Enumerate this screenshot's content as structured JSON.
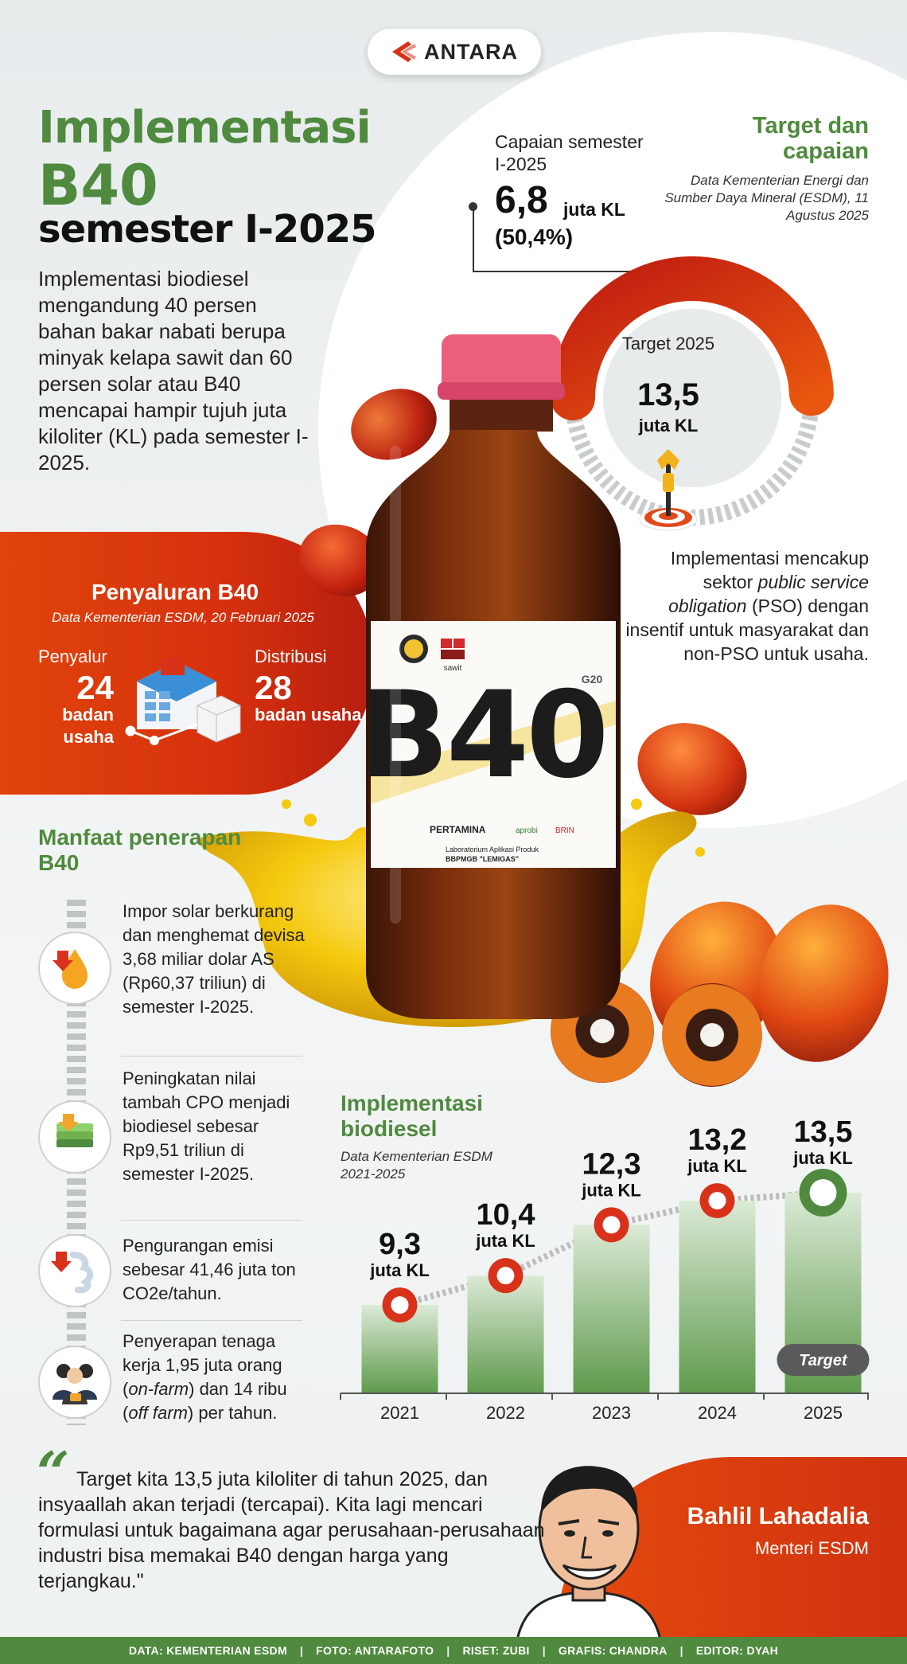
{
  "logo": {
    "text": "ANTARA"
  },
  "title": {
    "line1": "Implementasi",
    "line2": "B40",
    "line3": "semester I-2025"
  },
  "intro": "Implementasi biodiesel mengandung 40 persen bahan bakar nabati berupa minyak kelapa sawit dan 60 persen solar atau B40 mencapai hampir tujuh juta kiloliter (KL) pada semester I-2025.",
  "target_section": {
    "heading": "Target dan capaian",
    "source": "Data Kementerian Energi dan Sumber Daya Mineral (ESDM), 11 Agustus 2025",
    "achievement_label": "Capaian semester I-2025",
    "achievement_value": "6,8",
    "achievement_unit": "juta KL",
    "achievement_percent": "(50,4%)",
    "achievement_fraction": 0.504,
    "target_label": "Target 2025",
    "target_value": "13,5",
    "target_unit": "juta KL",
    "pso_text_parts": [
      "Implementasi mencakup sektor ",
      "public service obligation",
      " (PSO) dengan insentif untuk masyarakat dan non-PSO untuk usaha."
    ]
  },
  "distribution": {
    "title": "Penyaluran B40",
    "source": "Data Kementerian ESDM, 20 Februari 2025",
    "distributor_label": "Penyalur",
    "distributor_value": "24",
    "distributor_unit": "badan usaha",
    "distribution_label": "Distribusi",
    "distribution_value": "28",
    "distribution_unit": "badan usaha"
  },
  "benefits": {
    "heading": "Manfaat penerapan B40",
    "items": [
      {
        "icon": "fuel-drop-icon",
        "text": "Impor solar berkurang dan menghemat devisa 3,68 miliar dolar AS (Rp60,37 triliun) di semester I-2025."
      },
      {
        "icon": "money-stack-icon",
        "text": "Peningkatan nilai tambah CPO menjadi biodiesel sebesar Rp9,51 triliun di semester I-2025."
      },
      {
        "icon": "emission-down-icon",
        "text": "Pengurangan emisi sebesar 41,46 juta ton CO2e/tahun."
      },
      {
        "icon": "workers-icon",
        "text_parts": [
          "Penyerapan tenaga kerja 1,95 juta orang (",
          "on-farm",
          ") dan 14 ribu (",
          "off farm",
          ") per tahun."
        ]
      }
    ]
  },
  "chart_data": {
    "type": "bar",
    "title": "Implementasi biodiesel",
    "source": "Data Kementerian ESDM 2021-2025",
    "categories": [
      "2021",
      "2022",
      "2023",
      "2024",
      "2025"
    ],
    "values": [
      9.3,
      10.4,
      12.3,
      13.2,
      13.5
    ],
    "value_labels": [
      "9,3",
      "10,4",
      "12,3",
      "13,2",
      "13,5"
    ],
    "unit": "juta KL",
    "annotation": "Target",
    "annotation_category": "2025",
    "colors": {
      "bar": "#5e9a4c",
      "bar_light": "#dcead6",
      "marker": "#d8321b",
      "target_marker": "#4f8a3e"
    }
  },
  "quote": {
    "mark": "“",
    "text": "Target kita 13,5 juta kiloliter di tahun 2025, dan insyaallah akan terjadi (tercapai). Kita lagi mencari formulasi untuk bagaimana agar perusahaan-perusahaan industri bisa memakai B40 dengan harga yang terjangkau.\"",
    "speaker": "Bahlil Lahadalia",
    "role": "Menteri ESDM"
  },
  "footer": {
    "items": [
      "DATA: KEMENTERIAN ESDM",
      "FOTO: ANTARAFOTO",
      "RISET: ZUBI",
      "GRAFIS: CHANDRA",
      "EDITOR: DYAH"
    ],
    "separator": "|"
  },
  "bottle_label": {
    "main": "B40",
    "brand_small": "sawit",
    "g20": "G20",
    "pertamina": "PERTAMINA",
    "aprobi": "aprobi",
    "brin": "BRIN",
    "lab_line1": "Laboratorium Aplikasi Produk",
    "lab_line2": "BBPMGB \"LEMIGAS\""
  },
  "colors": {
    "green": "#4f8a3e",
    "orange": "#e0440c",
    "red": "#c02412"
  }
}
